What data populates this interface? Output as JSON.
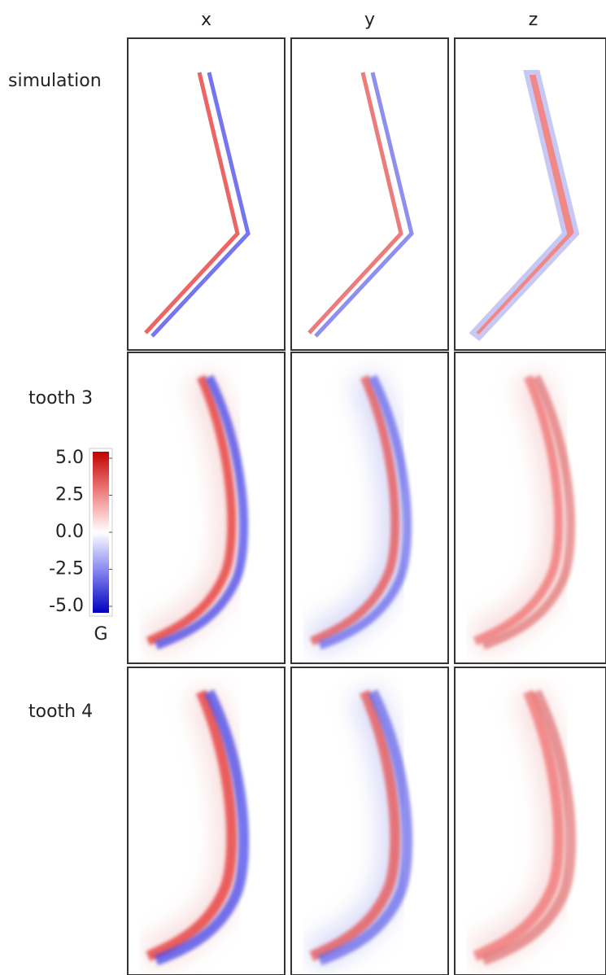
{
  "chart_data": {
    "type": "image-grid",
    "columns": [
      "x",
      "y",
      "z"
    ],
    "rows": [
      "simulation",
      "tooth 3",
      "tooth 4"
    ],
    "colorbar": {
      "label": "G",
      "lim": [
        -5,
        5
      ],
      "ticks": [
        {
          "value": 5,
          "label": "5.0"
        },
        2.5,
        {
          "value": 0,
          "label": "0.0"
        },
        -2.5,
        {
          "value": -5,
          "label": "-5.0"
        }
      ]
    }
  }
}
